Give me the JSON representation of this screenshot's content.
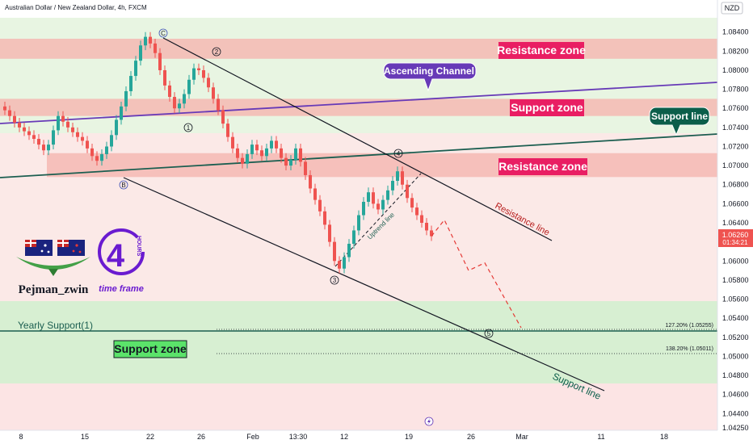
{
  "header": {
    "title": "Australian Dollar / New Zealand Dollar, 4h, FXCM"
  },
  "currency_badge": "NZD",
  "last_price": {
    "value": "1.06260",
    "countdown": "01:34:21"
  },
  "logo": {
    "author": "Pejman_zwin",
    "number": "4",
    "hours": "HOURS",
    "timeframe": "time frame"
  },
  "annotations": {
    "resistance_zone_top": "Resistance zone",
    "ascending_channel": "Ascending Channel",
    "support_zone_mid": "Support zone",
    "support_line_callout": "Support line",
    "resistance_zone_mid": "Resistance zone",
    "resistance_line": "Resistance line",
    "uptrend_line": "Uptrend line",
    "yearly_support": "Yearly Support(1)",
    "support_zone_low": "Support zone",
    "support_line_bottom": "Support line",
    "fib_127": "127.20% (1.05255)",
    "fib_138": "138.20% (1.05011)"
  },
  "waves": {
    "c": "C",
    "b": "B",
    "w1": "1",
    "w2": "2",
    "w3": "3",
    "w4": "4",
    "w5": "5"
  },
  "colors": {
    "up_candle": "#26a69a",
    "down_candle": "#ef5350",
    "resistance_fill": "#f5b5b0",
    "support_fill": "#c8e6c9",
    "zone_label_bg": "#e91e63",
    "channel_line": "#673ab7",
    "support_line": "#1b5e50",
    "callout_purple": "#673ab7",
    "callout_green": "#0b5e4a",
    "support_zone_label": "#4caf50"
  },
  "chart_data": {
    "type": "candlestick",
    "symbol": "AUDNZD",
    "timeframe": "4h",
    "x_ticks": [
      "8",
      "15",
      "22",
      "26",
      "Feb",
      "13:30",
      "12",
      "19",
      "26",
      "Mar",
      "11",
      "18"
    ],
    "y_ticks": [
      "1.08400",
      "1.08200",
      "1.08000",
      "1.07800",
      "1.07600",
      "1.07400",
      "1.07200",
      "1.07000",
      "1.06800",
      "1.06600",
      "1.06400",
      "1.06200",
      "1.06000",
      "1.05800",
      "1.05600",
      "1.05400",
      "1.05200",
      "1.05000",
      "1.04800",
      "1.04600",
      "1.04400",
      "1.04250"
    ],
    "ylim": [
      1.0425,
      1.0855
    ],
    "price_path": [
      [
        0,
        1.0762
      ],
      [
        0.6,
        1.0758
      ],
      [
        1.2,
        1.0752
      ],
      [
        1.8,
        1.0745
      ],
      [
        2.4,
        1.074
      ],
      [
        3.0,
        1.0736
      ],
      [
        3.6,
        1.0732
      ],
      [
        4.2,
        1.0728
      ],
      [
        4.8,
        1.0722
      ],
      [
        5.4,
        1.0716
      ],
      [
        6.0,
        1.0722
      ],
      [
        6.6,
        1.0737
      ],
      [
        7.2,
        1.0752
      ],
      [
        7.8,
        1.0746
      ],
      [
        8.4,
        1.074
      ],
      [
        9.0,
        1.0735
      ],
      [
        9.6,
        1.073
      ],
      [
        10.2,
        1.0726
      ],
      [
        10.8,
        1.0718
      ],
      [
        11.4,
        1.071
      ],
      [
        12.0,
        1.0705
      ],
      [
        12.6,
        1.0712
      ],
      [
        13.2,
        1.072
      ],
      [
        13.8,
        1.0732
      ],
      [
        14.4,
        1.0748
      ],
      [
        15.0,
        1.0762
      ],
      [
        15.6,
        1.0778
      ],
      [
        16.2,
        1.0794
      ],
      [
        16.8,
        1.081
      ],
      [
        17.4,
        1.0826
      ],
      [
        18.0,
        1.0835
      ],
      [
        18.6,
        1.0828
      ],
      [
        19.2,
        1.0818
      ],
      [
        19.8,
        1.08
      ],
      [
        20.4,
        1.0784
      ],
      [
        21.0,
        1.0772
      ],
      [
        21.6,
        1.076
      ],
      [
        22.2,
        1.0765
      ],
      [
        22.8,
        1.0775
      ],
      [
        23.4,
        1.079
      ],
      [
        24.0,
        1.0802
      ],
      [
        24.6,
        1.08
      ],
      [
        25.2,
        1.0792
      ],
      [
        25.8,
        1.0782
      ],
      [
        26.4,
        1.077
      ],
      [
        27.0,
        1.0758
      ],
      [
        27.6,
        1.0744
      ],
      [
        28.2,
        1.073
      ],
      [
        28.8,
        1.0718
      ],
      [
        29.4,
        1.0708
      ],
      [
        30.0,
        1.0702
      ],
      [
        30.6,
        1.0712
      ],
      [
        31.2,
        1.0722
      ],
      [
        31.8,
        1.0716
      ],
      [
        32.4,
        1.071
      ],
      [
        33.0,
        1.0718
      ],
      [
        33.6,
        1.0726
      ],
      [
        34.2,
        1.0718
      ],
      [
        34.8,
        1.0708
      ],
      [
        35.4,
        1.07
      ],
      [
        36.0,
        1.0706
      ],
      [
        36.6,
        1.0718
      ],
      [
        37.2,
        1.0704
      ],
      [
        37.8,
        1.069
      ],
      [
        38.4,
        1.0676
      ],
      [
        39.0,
        1.0664
      ],
      [
        39.6,
        1.0652
      ],
      [
        40.2,
        1.0638
      ],
      [
        40.8,
        1.062
      ],
      [
        41.4,
        1.06
      ],
      [
        42.0,
        1.0592
      ],
      [
        42.6,
        1.0604
      ],
      [
        43.2,
        1.0618
      ],
      [
        43.8,
        1.0632
      ],
      [
        44.4,
        1.0648
      ],
      [
        45.0,
        1.0662
      ],
      [
        45.6,
        1.0672
      ],
      [
        46.2,
        1.066
      ],
      [
        46.8,
        1.0654
      ],
      [
        47.4,
        1.0664
      ],
      [
        48.0,
        1.0674
      ],
      [
        48.6,
        1.0684
      ],
      [
        49.2,
        1.0694
      ],
      [
        49.8,
        1.068
      ],
      [
        50.4,
        1.0666
      ],
      [
        51.0,
        1.0656
      ],
      [
        51.6,
        1.0648
      ],
      [
        52.2,
        1.064
      ],
      [
        52.8,
        1.0632
      ],
      [
        53.4,
        1.0626
      ]
    ],
    "projection": [
      [
        53.4,
        1.0626
      ],
      [
        55.0,
        1.0643
      ],
      [
        58.0,
        1.059
      ],
      [
        60.0,
        1.0598
      ],
      [
        64.5,
        1.053
      ]
    ],
    "zones": [
      {
        "name": "Resistance zone",
        "low": 1.0812,
        "high": 1.0833
      },
      {
        "name": "Support zone",
        "low": 1.0752,
        "high": 1.077
      },
      {
        "name": "Resistance zone",
        "low": 1.0688,
        "high": 1.0713
      },
      {
        "name": "Support zone",
        "low": 1.0475,
        "high": 1.0553
      }
    ],
    "fib_levels": [
      {
        "label": "127.20% (1.05255)",
        "value": 1.05255
      },
      {
        "label": "138.20% (1.05011)",
        "value": 1.05011
      }
    ]
  }
}
